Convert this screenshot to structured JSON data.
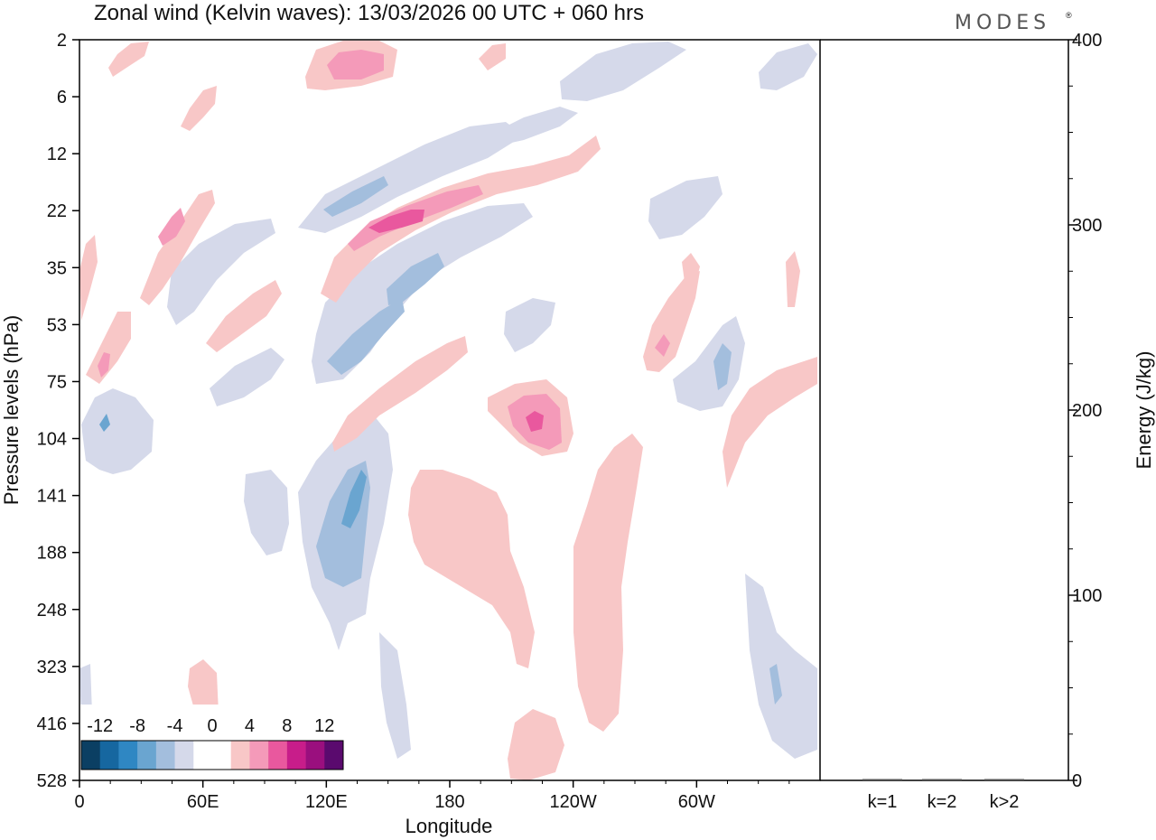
{
  "header": {
    "title": "Zonal wind (Kelvin waves):  13/03/2026  00 UTC  + 060 hrs",
    "brand": "MODES",
    "brand_mark": "®"
  },
  "chart_data": [
    {
      "type": "heatmap",
      "title": "Zonal wind (Kelvin waves):  13/03/2026  00 UTC  + 060 hrs",
      "xlabel": "Longitude",
      "ylabel": "Pressure levels (hPa)",
      "x_ticks": [
        "0",
        "60E",
        "120E",
        "180",
        "120W",
        "60W"
      ],
      "x_tick_degrees": [
        0,
        60,
        120,
        180,
        240,
        300
      ],
      "xlim_degrees": [
        0,
        360
      ],
      "y_ticks": [
        "2",
        "6",
        "12",
        "22",
        "35",
        "53",
        "75",
        "104",
        "141",
        "188",
        "248",
        "323",
        "416",
        "528"
      ],
      "y_scale": "level-index",
      "grid": false,
      "colorbar": {
        "labels": [
          "-12",
          "-8",
          "-4",
          "0",
          "4",
          "8",
          "12"
        ],
        "colors": [
          "#0b3f63",
          "#1667a0",
          "#2f87c3",
          "#6aa5d0",
          "#a3bedd",
          "#d5d9ea",
          "#ffffff",
          "#ffffff",
          "#f8c7c7",
          "#f49ab9",
          "#e9589e",
          "#c81d8a",
          "#9a0f7e",
          "#5a0a6e"
        ]
      },
      "contour_features": [
        {
          "sign": "positive",
          "level": 4,
          "lon_center": 140,
          "pressure_level": "22-35",
          "note": "max 8"
        },
        {
          "sign": "positive",
          "level": 4,
          "lon_center": 222,
          "pressure_level": "75-104",
          "note": "max 8"
        },
        {
          "sign": "negative",
          "level": -4,
          "lon_center": 128,
          "pressure_level": "104-188",
          "note": "min -8"
        },
        {
          "sign": "negative",
          "level": -4,
          "lon_center": 148,
          "pressure_level": "35-53"
        },
        {
          "sign": "positive",
          "level": 4,
          "lon_center": 180,
          "pressure_level": "141-323"
        },
        {
          "sign": "negative",
          "level": -4,
          "lon_center": 335,
          "pressure_level": "248-416"
        }
      ]
    },
    {
      "type": "bar",
      "categories": [
        "k=1",
        "k=2",
        "k>2"
      ],
      "values": [
        0,
        0,
        0
      ],
      "ylabel": "Energy (J/kg)",
      "ylim": [
        0,
        400
      ],
      "y_ticks": [
        "0",
        "100",
        "200",
        "300",
        "400"
      ],
      "grid": false
    }
  ]
}
